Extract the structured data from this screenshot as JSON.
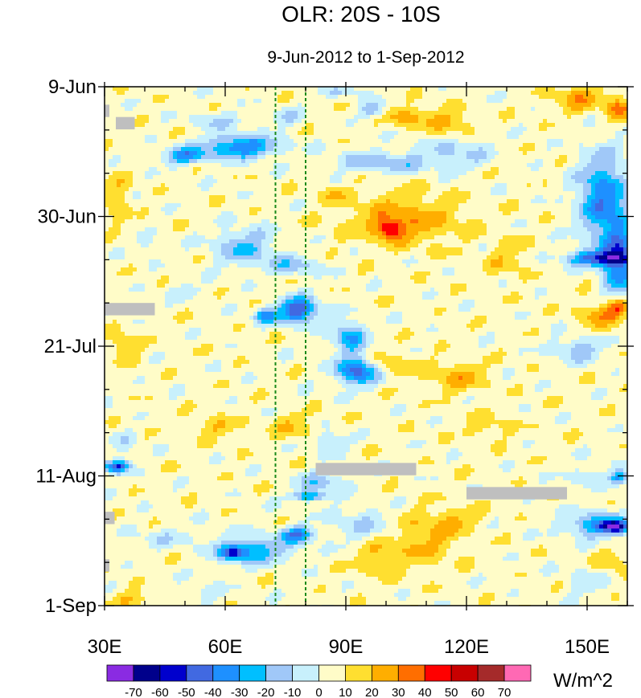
{
  "chart_data": {
    "type": "heatmap",
    "title": "OLR: 20S - 10S",
    "subtitle": "9-Jun-2012 to 1-Sep-2012",
    "units": "W/m^2",
    "x": {
      "range": [
        30,
        160
      ],
      "tick_values": [
        30,
        60,
        90,
        120,
        150
      ],
      "tick_labels": [
        "30E",
        "60E",
        "90E",
        "120E",
        "150E"
      ],
      "minor_step": 10
    },
    "y": {
      "range_days": [
        0,
        84
      ],
      "tick_days": [
        0,
        21,
        42,
        63,
        84
      ],
      "tick_labels": [
        "9-Jun",
        "30-Jun",
        "21-Jul",
        "11-Aug",
        "1-Sep"
      ],
      "minor_step_days": 7
    },
    "reference_lines": [
      {
        "lon": 72.5,
        "style": "dashed",
        "color": "#1a8a1a"
      },
      {
        "lon": 80,
        "style": "dashed",
        "color": "#1a8a1a"
      }
    ],
    "levels": [
      -70,
      -60,
      -50,
      -40,
      -30,
      -20,
      -10,
      0,
      10,
      20,
      30,
      40,
      50,
      60,
      70
    ],
    "level_labels": [
      "-70",
      "-60",
      "-50",
      "-40",
      "-30",
      "-20",
      "-10",
      "0",
      "10",
      "20",
      "30",
      "40",
      "50",
      "60",
      "70"
    ],
    "colors": [
      "#8a2be2",
      "#00008b",
      "#0000cd",
      "#4169e1",
      "#1e90ff",
      "#00bfff",
      "#a0c8f8",
      "#c8f0fc",
      "#fffcc8",
      "#ffdf30",
      "#ffae00",
      "#ff6e00",
      "#ff0000",
      "#c80000",
      "#a52a2a",
      "#ff69b4"
    ],
    "missing_color": "#bfbfbf",
    "background_value": 5,
    "missing_regions": [
      {
        "lon": [
          30,
          31.2
        ],
        "days": [
          2.9,
          4.9
        ]
      },
      {
        "lon": [
          32.8,
          37.5
        ],
        "days": [
          4.9,
          6.9
        ]
      },
      {
        "lon": [
          30,
          42.5
        ],
        "days": [
          35,
          37
        ]
      },
      {
        "lon": [
          82.5,
          107.5
        ],
        "days": [
          60.9,
          62.9
        ]
      },
      {
        "lon": [
          120,
          145
        ],
        "days": [
          64.8,
          66.8
        ]
      },
      {
        "lon": [
          30,
          32.5
        ],
        "days": [
          68.8,
          70.8
        ]
      },
      {
        "lon": [
          30,
          31.2
        ],
        "days": [
          76.5,
          78.5
        ]
      }
    ],
    "anomaly_features": [
      {
        "lon": 64,
        "day": 9.7,
        "rlon": 9,
        "rday": 1.8,
        "value": -45
      },
      {
        "lon": 50,
        "day": 11.2,
        "rlon": 5,
        "rday": 1.3,
        "value": -40
      },
      {
        "lon": 58,
        "day": 5.5,
        "rlon": 6,
        "rday": 1.5,
        "value": -15
      },
      {
        "lon": 75,
        "day": 5,
        "rlon": 4,
        "rday": 1.5,
        "value": -15
      },
      {
        "lon": 97,
        "day": 3.8,
        "rlon": 3,
        "rday": 1.4,
        "value": -25
      },
      {
        "lon": 105,
        "day": 4.8,
        "rlon": 6,
        "rday": 1.6,
        "value": 20
      },
      {
        "lon": 116,
        "day": 5.8,
        "rlon": 6,
        "rday": 2,
        "value": 18
      },
      {
        "lon": 100,
        "day": 12.2,
        "rlon": 12,
        "rday": 1.7,
        "value": -22
      },
      {
        "lon": 118,
        "day": 10.5,
        "rlon": 9,
        "rday": 2.6,
        "value": -15
      },
      {
        "lon": 148,
        "day": 1.8,
        "rlon": 6,
        "rday": 2.5,
        "value": 20
      },
      {
        "lon": 158,
        "day": 3.5,
        "rlon": 3,
        "rday": 2,
        "value": 28
      },
      {
        "lon": 90,
        "day": 0.8,
        "rlon": 5,
        "rday": 0.8,
        "value": -15
      },
      {
        "lon": 154,
        "day": 18,
        "rlon": 6,
        "rday": 7,
        "value": -42
      },
      {
        "lon": 158,
        "day": 28,
        "rlon": 4,
        "rday": 6,
        "value": -45
      },
      {
        "lon": 153,
        "day": 27.8,
        "rlon": 8,
        "rday": 1.2,
        "value": -50
      },
      {
        "lon": 105,
        "day": 21.5,
        "rlon": 14,
        "rday": 4,
        "value": 22
      },
      {
        "lon": 101,
        "day": 23,
        "rlon": 3,
        "rday": 1.5,
        "value": 35
      },
      {
        "lon": 87,
        "day": 17.5,
        "rlon": 3,
        "rday": 1.3,
        "value": 15
      },
      {
        "lon": 33,
        "day": 18,
        "rlon": 3,
        "rday": 4,
        "value": 15
      },
      {
        "lon": 65,
        "day": 26,
        "rlon": 8,
        "rday": 3,
        "value": -25
      },
      {
        "lon": 77,
        "day": 29,
        "rlon": 7,
        "rday": 1.5,
        "value": -20
      },
      {
        "lon": 40,
        "day": 25.5,
        "rlon": 2,
        "rday": 1.2,
        "value": -15
      },
      {
        "lon": 50,
        "day": 33,
        "rlon": 5,
        "rday": 1.3,
        "value": -10
      },
      {
        "lon": 78,
        "day": 36.2,
        "rlon": 5,
        "rday": 2,
        "value": -55
      },
      {
        "lon": 70,
        "day": 37.2,
        "rlon": 3,
        "rday": 1.2,
        "value": -35
      },
      {
        "lon": 91,
        "day": 40.5,
        "rlon": 4,
        "rday": 2.5,
        "value": -35
      },
      {
        "lon": 93,
        "day": 46,
        "rlon": 5,
        "rday": 2.2,
        "value": -55
      },
      {
        "lon": 100,
        "day": 45,
        "rlon": 7,
        "rday": 2,
        "value": 15
      },
      {
        "lon": 118,
        "day": 47,
        "rlon": 7,
        "rday": 2.5,
        "value": 18
      },
      {
        "lon": 154,
        "day": 37,
        "rlon": 6,
        "rday": 2.5,
        "value": 20
      },
      {
        "lon": 148,
        "day": 42.5,
        "rlon": 6,
        "rday": 2,
        "value": -22
      },
      {
        "lon": 158,
        "day": 35.8,
        "rlon": 3,
        "rday": 1.5,
        "value": 30
      },
      {
        "lon": 35,
        "day": 42,
        "rlon": 4,
        "rday": 2,
        "value": 15
      },
      {
        "lon": 33,
        "day": 61.5,
        "rlon": 3,
        "rday": 1,
        "value": -55
      },
      {
        "lon": 35,
        "day": 58,
        "rlon": 3,
        "rday": 2,
        "value": -12
      },
      {
        "lon": 58,
        "day": 55,
        "rlon": 6,
        "rday": 1.5,
        "value": 15
      },
      {
        "lon": 77,
        "day": 55,
        "rlon": 5,
        "rday": 2,
        "value": 15
      },
      {
        "lon": 86,
        "day": 57.5,
        "rlon": 4,
        "rday": 1.5,
        "value": -20
      },
      {
        "lon": 84,
        "day": 64,
        "rlon": 6,
        "rday": 1.6,
        "value": -22
      },
      {
        "lon": 81,
        "day": 66.3,
        "rlon": 4,
        "rday": 0.8,
        "value": -40
      },
      {
        "lon": 67,
        "day": 75,
        "rlon": 9,
        "rday": 2.2,
        "value": -32
      },
      {
        "lon": 78,
        "day": 72.5,
        "rlon": 4,
        "rday": 1.3,
        "value": -42
      },
      {
        "lon": 62,
        "day": 75.5,
        "rlon": 3,
        "rday": 1,
        "value": -45
      },
      {
        "lon": 94,
        "day": 71,
        "rlon": 8,
        "rday": 3,
        "value": -15
      },
      {
        "lon": 110,
        "day": 73,
        "rlon": 8,
        "rday": 4,
        "value": 18
      },
      {
        "lon": 98,
        "day": 76,
        "rlon": 6,
        "rday": 3,
        "value": 15
      },
      {
        "lon": 118,
        "day": 70,
        "rlon": 6,
        "rday": 2,
        "value": 12
      },
      {
        "lon": 153,
        "day": 71,
        "rlon": 8,
        "rday": 2,
        "value": -38
      },
      {
        "lon": 157,
        "day": 71.2,
        "rlon": 3,
        "rday": 0.9,
        "value": -55
      },
      {
        "lon": 150,
        "day": 63,
        "rlon": 5,
        "rday": 1.3,
        "value": -15
      },
      {
        "lon": 158,
        "day": 63.2,
        "rlon": 2,
        "rday": 1.2,
        "value": -38
      },
      {
        "lon": 156,
        "day": 77,
        "rlon": 4,
        "rday": 2,
        "value": 15
      },
      {
        "lon": 150,
        "day": 80,
        "rlon": 5,
        "rday": 2.5,
        "value": -12
      },
      {
        "lon": 38,
        "day": 83,
        "rlon": 6,
        "rday": 1.2,
        "value": 15
      },
      {
        "lon": 45,
        "day": 73,
        "rlon": 8,
        "rday": 1.5,
        "value": -12
      },
      {
        "lon": 55,
        "day": 82,
        "rlon": 5,
        "rday": 1.2,
        "value": -12
      },
      {
        "lon": 130,
        "day": 28,
        "rlon": 5,
        "rday": 3,
        "value": 12
      },
      {
        "lon": 125,
        "day": 55,
        "rlon": 6,
        "rday": 2,
        "value": 12
      }
    ]
  }
}
